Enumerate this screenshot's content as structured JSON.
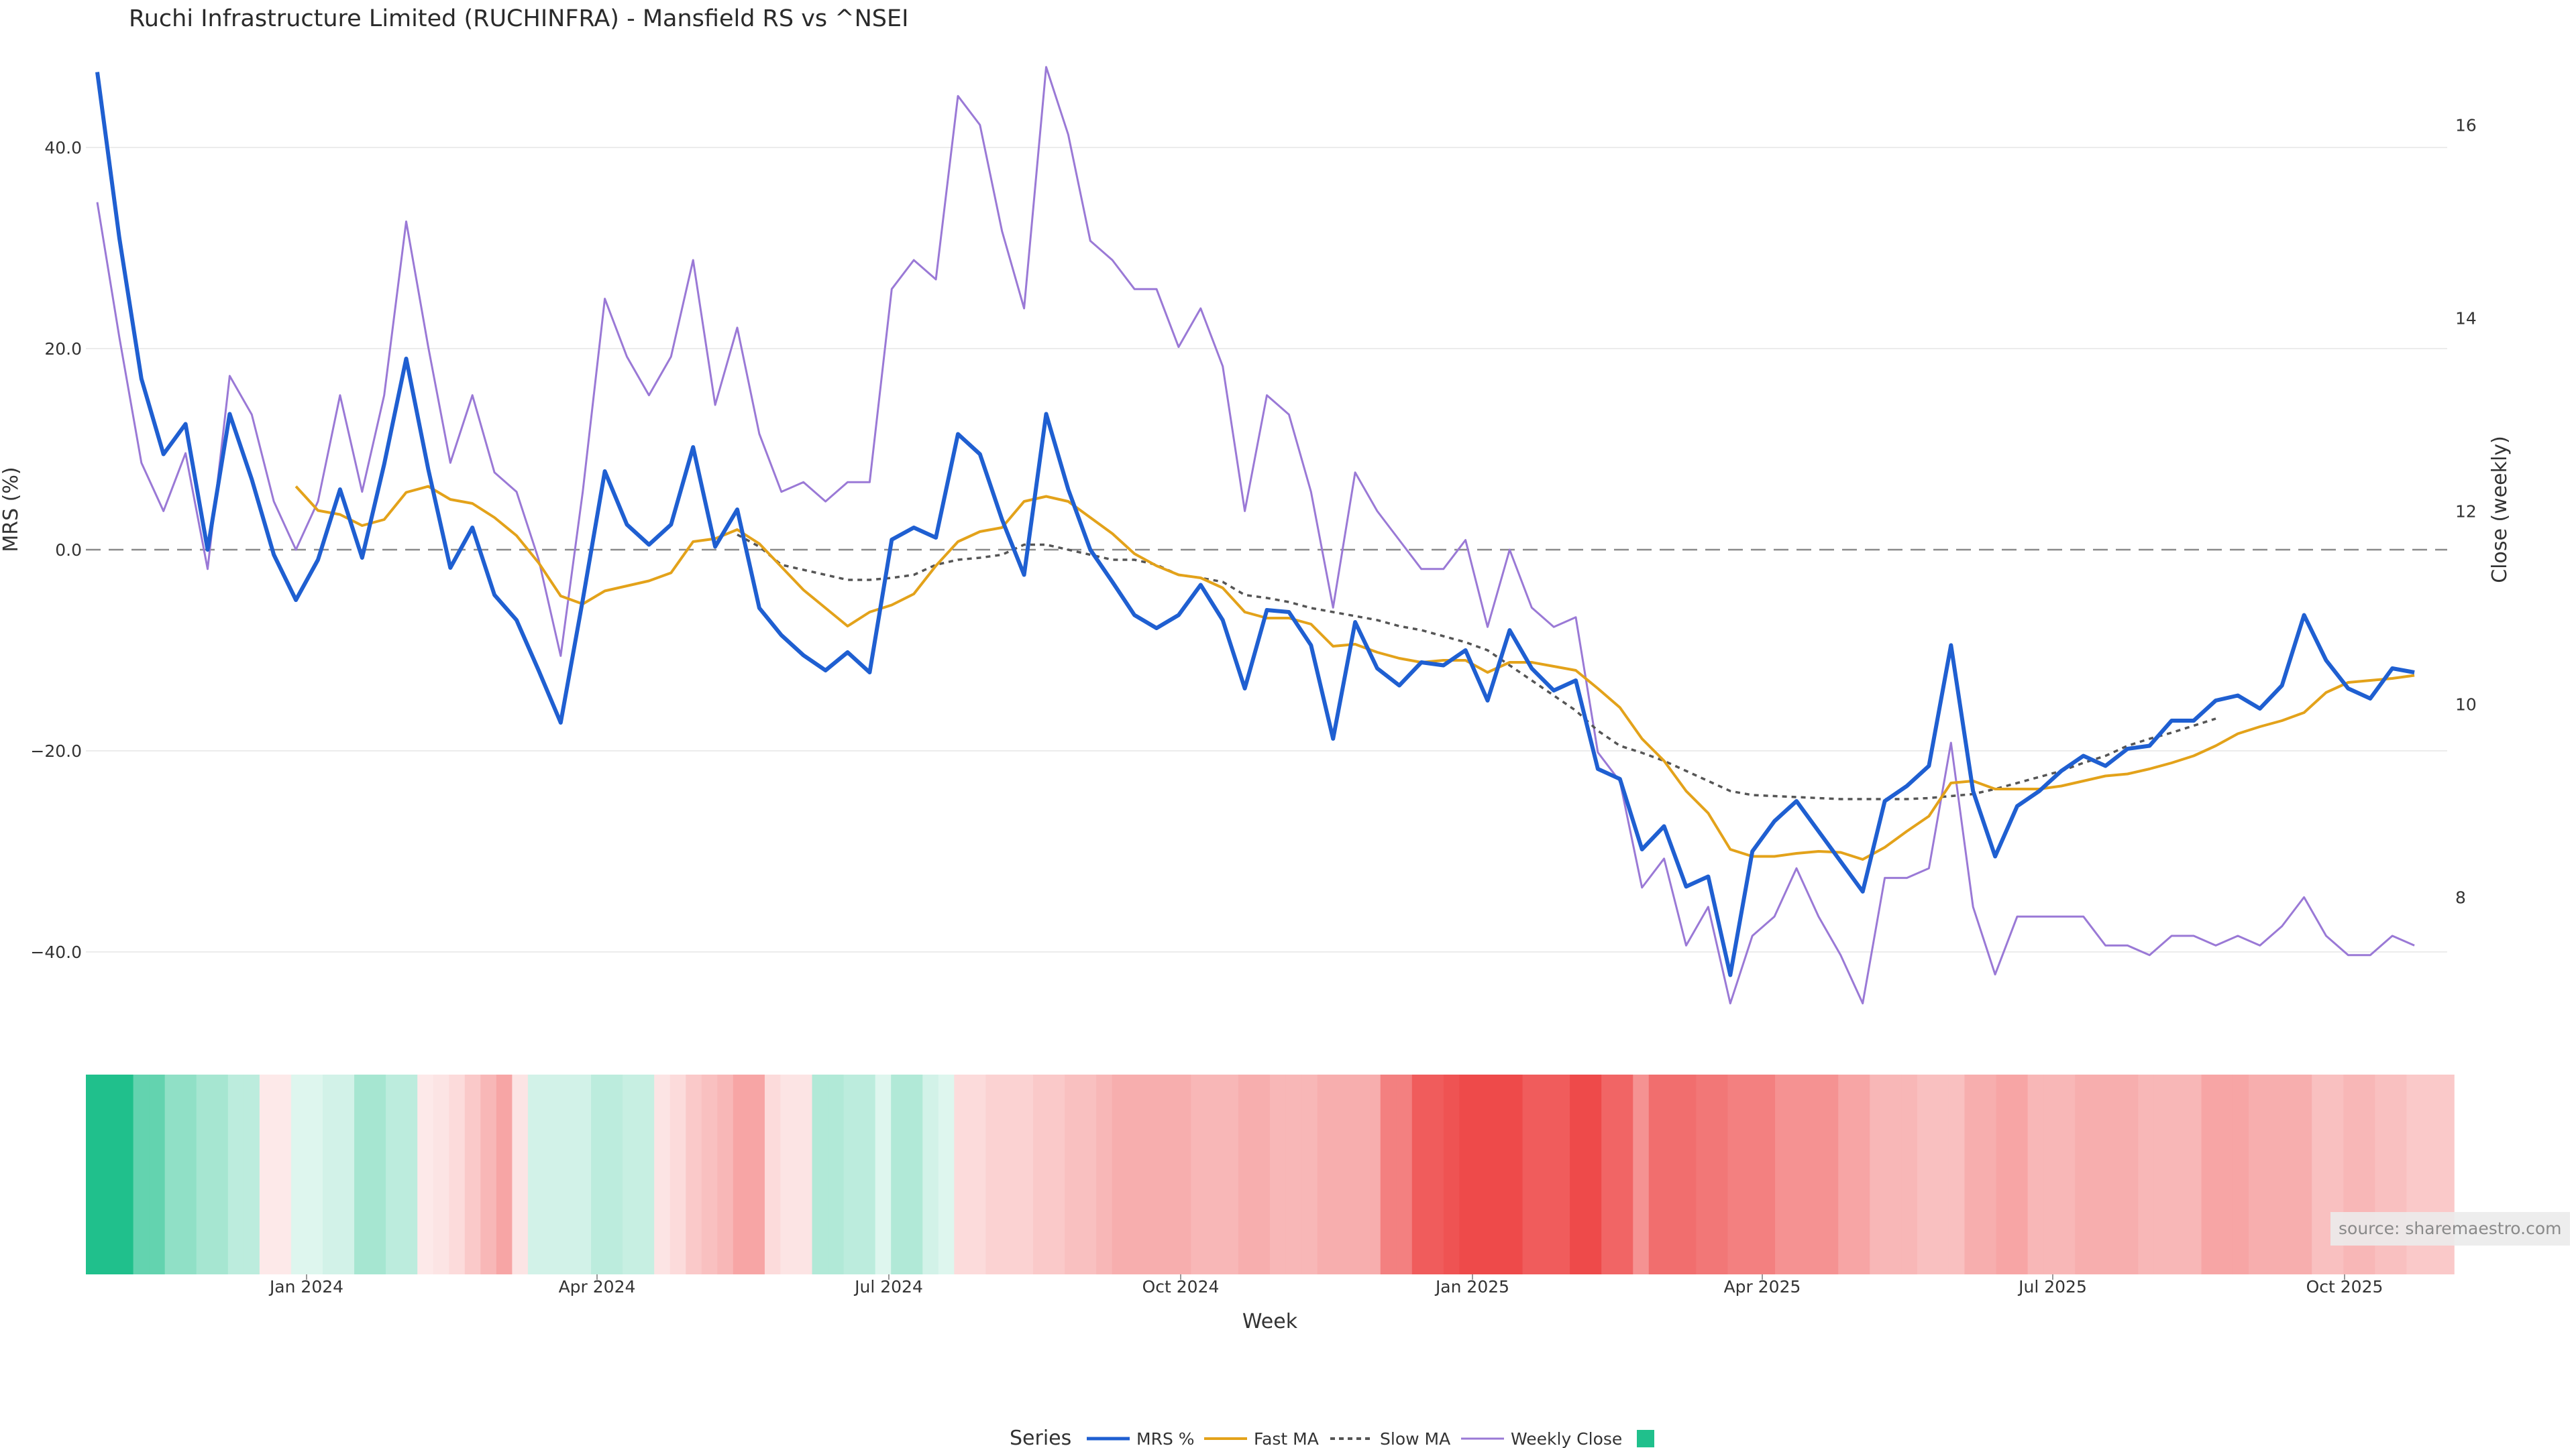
{
  "chart_data": {
    "type": "line",
    "title": "Ruchi Infrastructure Limited (RUCHINFRA) - Mansfield RS vs ^NSEI",
    "xlabel": "Week",
    "ylabel": "MRS (%)",
    "y2label": "Close (weekly)",
    "source": "source: sharemaestro.com",
    "x_tick_labels": [
      "Jan 2024",
      "Apr 2024",
      "Jul 2024",
      "Oct 2024",
      "Jan 2025",
      "Apr 2025",
      "Jul 2025",
      "Oct 2025"
    ],
    "y_tick_labels": [
      "40.0",
      "20.0",
      "0.0",
      "−20.0",
      "−40.0"
    ],
    "y2_tick_labels": [
      "16",
      "14",
      "12",
      "10",
      "8"
    ],
    "ylim": [
      -48,
      48
    ],
    "y2lim": [
      6.6,
      16.6
    ],
    "grid": true,
    "legend": {
      "title": "Series",
      "position": "bottom",
      "entries": [
        "MRS %",
        "Fast MA",
        "Slow MA",
        "Weekly Close",
        ""
      ]
    },
    "colors": {
      "mrs": "#1f5fd1",
      "fast_ma": "#e3a21a",
      "slow_ma": "#555555",
      "weekly_close": "#9a79d6",
      "positive": "#20c08c",
      "negative": "#ee4a4a"
    },
    "weeks": 107,
    "series": [
      {
        "name": "MRS %",
        "axis": "left",
        "values": [
          47.5,
          31,
          17,
          9.5,
          12.5,
          0,
          13.5,
          7,
          -0.5,
          -5,
          -1,
          6,
          -0.8,
          8.5,
          19,
          8,
          -1.8,
          2.2,
          -4.5,
          -7,
          -12,
          -17.2,
          -5,
          7.8,
          2.5,
          0.5,
          2.5,
          10.2,
          0.3,
          4,
          -5.8,
          -8.5,
          -10.5,
          -12,
          -10.2,
          -12.2,
          1,
          2.2,
          1.2,
          11.5,
          9.5,
          3,
          -2.5,
          13.5,
          6,
          0,
          -3.2,
          -6.5,
          -7.8,
          -6.5,
          -3.5,
          -7,
          -13.8,
          -6,
          -6.2,
          -9.5,
          -18.8,
          -7.2,
          -11.8,
          -13.5,
          -11.2,
          -11.5,
          -10,
          -15,
          -8,
          -11.8,
          -14,
          -13,
          -21.8,
          -22.8,
          -29.8,
          -27.5,
          -33.5,
          -32.5,
          -42.3,
          -30,
          -27,
          -25,
          -28,
          -31,
          -34,
          -25,
          -23.5,
          -21.5,
          -9.5,
          -24,
          -30.5,
          -25.5,
          -24,
          -22,
          -20.5,
          -21.5,
          -19.8,
          -19.5,
          -17,
          -17,
          -15,
          -14.5,
          -15.8,
          -13.5,
          -6.5,
          -11,
          -13.8,
          -14.8,
          -11.8,
          -12.2
        ]
      },
      {
        "name": "Fast MA",
        "axis": "left",
        "start_week": 9,
        "values": [
          6.3,
          3.9,
          3.5,
          2.4,
          3,
          5.7,
          6.3,
          5,
          4.6,
          3.2,
          1.4,
          -1.3,
          -4.6,
          -5.4,
          -4.1,
          -3.6,
          -3.1,
          -2.3,
          0.8,
          1.1,
          2,
          0.6,
          -1.7,
          -4,
          -5.8,
          -7.6,
          -6.2,
          -5.5,
          -4.4,
          -1.6,
          0.8,
          1.8,
          2.2,
          4.8,
          5.3,
          4.8,
          3.2,
          1.6,
          -0.4,
          -1.6,
          -2.5,
          -2.8,
          -3.8,
          -6.2,
          -6.8,
          -6.8,
          -7.4,
          -9.6,
          -9.4,
          -10.2,
          -10.8,
          -11.2,
          -11,
          -11,
          -12.2,
          -11.2,
          -11.2,
          -11.6,
          -12,
          -13.8,
          -15.7,
          -18.8,
          -21,
          -24,
          -26.2,
          -29.8,
          -30.5,
          -30.5,
          -30.2,
          -30,
          -30.1,
          -30.8,
          -29.6,
          -28,
          -26.5,
          -23.2,
          -23,
          -23.8,
          -23.8,
          -23.8,
          -23.5,
          -23,
          -22.5,
          -22.3,
          -21.8,
          -21.2,
          -20.5,
          -19.5,
          -18.3,
          -17.6,
          -17,
          -16.2,
          -14.2,
          -13.2,
          -13,
          -12.8,
          -12.5
        ]
      },
      {
        "name": "Slow MA",
        "axis": "left",
        "start_week": 29,
        "values": [
          1.5,
          0.3,
          -1.5,
          -2,
          -2.5,
          -3,
          -3,
          -2.8,
          -2.5,
          -1.5,
          -1,
          -0.8,
          -0.5,
          0.5,
          0.5,
          0,
          -0.5,
          -1,
          -1,
          -1.5,
          -2.5,
          -2.8,
          -3.2,
          -4.5,
          -4.8,
          -5.2,
          -5.8,
          -6.2,
          -6.6,
          -7,
          -7.6,
          -8,
          -8.6,
          -9.2,
          -10,
          -11.5,
          -13,
          -14.5,
          -16,
          -18,
          -19.5,
          -20.2,
          -21,
          -22,
          -23,
          -24,
          -24.4,
          -24.5,
          -24.6,
          -24.7,
          -24.8,
          -24.8,
          -24.8,
          -24.8,
          -24.7,
          -24.5,
          -24.3,
          -23.8,
          -23.2,
          -22.6,
          -22,
          -21.2,
          -20.5,
          -19.5,
          -18.8,
          -18.2,
          -17.5,
          -16.8
        ]
      },
      {
        "name": "Weekly Close",
        "axis": "right",
        "values": [
          15.2,
          13.8,
          12.5,
          12,
          12.6,
          11.4,
          13.4,
          13,
          12.1,
          11.6,
          12.1,
          13.2,
          12.2,
          13.2,
          15,
          13.7,
          12.5,
          13.2,
          12.4,
          12.2,
          11.5,
          10.5,
          12.2,
          14.2,
          13.6,
          13.2,
          13.6,
          14.6,
          13.1,
          13.9,
          12.8,
          12.2,
          12.3,
          12.1,
          12.3,
          12.3,
          14.3,
          14.6,
          14.4,
          16.3,
          16,
          14.9,
          14.1,
          16.6,
          15.9,
          14.8,
          14.6,
          14.3,
          14.3,
          13.7,
          14.1,
          13.5,
          12,
          13.2,
          13,
          12.2,
          11,
          12.4,
          12,
          11.7,
          11.4,
          11.4,
          11.7,
          10.8,
          11.6,
          11,
          10.8,
          10.9,
          9.5,
          9.2,
          8.1,
          8.4,
          7.5,
          7.9,
          6.9,
          7.6,
          7.8,
          8.3,
          7.8,
          7.4,
          6.9,
          8.2,
          8.2,
          8.3,
          9.6,
          7.9,
          7.2,
          7.8,
          7.8,
          7.8,
          7.8,
          7.5,
          7.5,
          7.4,
          7.6,
          7.6,
          7.5,
          7.6,
          7.5,
          7.7,
          8,
          7.6,
          7.4,
          7.4,
          7.6,
          7.5
        ]
      }
    ],
    "strength_strip": {
      "description_note": "",
      "values": [
        1,
        1,
        1,
        0.7,
        0.7,
        0.5,
        0.5,
        0.4,
        0.4,
        0.3,
        0.3,
        -0.1,
        -0.1,
        0.15,
        0.15,
        0.2,
        0.2,
        0.4,
        0.4,
        0.3,
        0.3,
        -0.1,
        -0.15,
        -0.2,
        -0.3,
        -0.4,
        -0.5,
        -0.15,
        0.2,
        0.2,
        0.2,
        0.2,
        0.3,
        0.3,
        0.25,
        0.25,
        -0.15,
        -0.2,
        -0.3,
        -0.35,
        -0.4,
        -0.5,
        -0.5,
        -0.2,
        -0.15,
        -0.15,
        0.35,
        0.35,
        0.3,
        0.3,
        0.15,
        0.35,
        0.35,
        0.2,
        0.15,
        -0.2,
        -0.2,
        -0.25,
        -0.25,
        -0.25,
        -0.3,
        -0.3,
        -0.35,
        -0.35,
        -0.4,
        -0.45,
        -0.45,
        -0.45,
        -0.45,
        -0.45,
        -0.4,
        -0.4,
        -0.4,
        -0.45,
        -0.45,
        -0.4,
        -0.4,
        -0.4,
        -0.45,
        -0.45,
        -0.45,
        -0.45,
        -0.7,
        -0.7,
        -0.9,
        -0.9,
        -0.95,
        -1,
        -1,
        -1,
        -1,
        -0.9,
        -0.9,
        -0.9,
        -1,
        -1,
        -0.85,
        -0.85,
        -0.6,
        -0.8,
        -0.8,
        -0.8,
        -0.75,
        -0.75,
        -0.7,
        -0.7,
        -0.7,
        -0.6,
        -0.6,
        -0.6,
        -0.6,
        -0.5,
        -0.5,
        -0.4,
        -0.4,
        -0.4,
        -0.35,
        -0.35,
        -0.35,
        -0.45,
        -0.45,
        -0.5,
        -0.5,
        -0.4,
        -0.4,
        -0.4,
        -0.45,
        -0.45,
        -0.45,
        -0.45,
        -0.4,
        -0.4,
        -0.4,
        -0.4,
        -0.5,
        -0.5,
        -0.5,
        -0.45,
        -0.45,
        -0.45,
        -0.45,
        -0.35,
        -0.35,
        -0.4,
        -0.4,
        -0.35,
        -0.35,
        -0.3,
        -0.3,
        -0.3
      ]
    }
  }
}
